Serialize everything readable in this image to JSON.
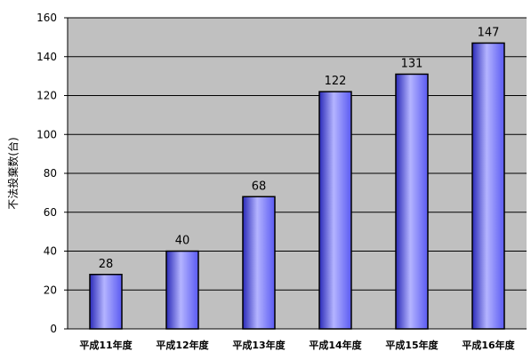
{
  "chart_data": {
    "type": "bar",
    "title": "",
    "xlabel": "",
    "ylabel": "不法投棄数(台)",
    "categories": [
      "平成11年度",
      "平成12年度",
      "平成13年度",
      "平成14年度",
      "平成15年度",
      "平成16年度"
    ],
    "values": [
      28,
      40,
      68,
      122,
      131,
      147
    ],
    "ylim": [
      0,
      160
    ],
    "yticks": [
      0,
      20,
      40,
      60,
      80,
      100,
      120,
      140,
      160
    ],
    "grid": true,
    "legend": "none",
    "colors": {
      "plot_background": "#c0c0c0",
      "bar_fill": "#5a5af2",
      "bar_highlight": "#b4b4ff",
      "bar_dark": "#2a2ab8",
      "gridline": "#000000"
    }
  }
}
